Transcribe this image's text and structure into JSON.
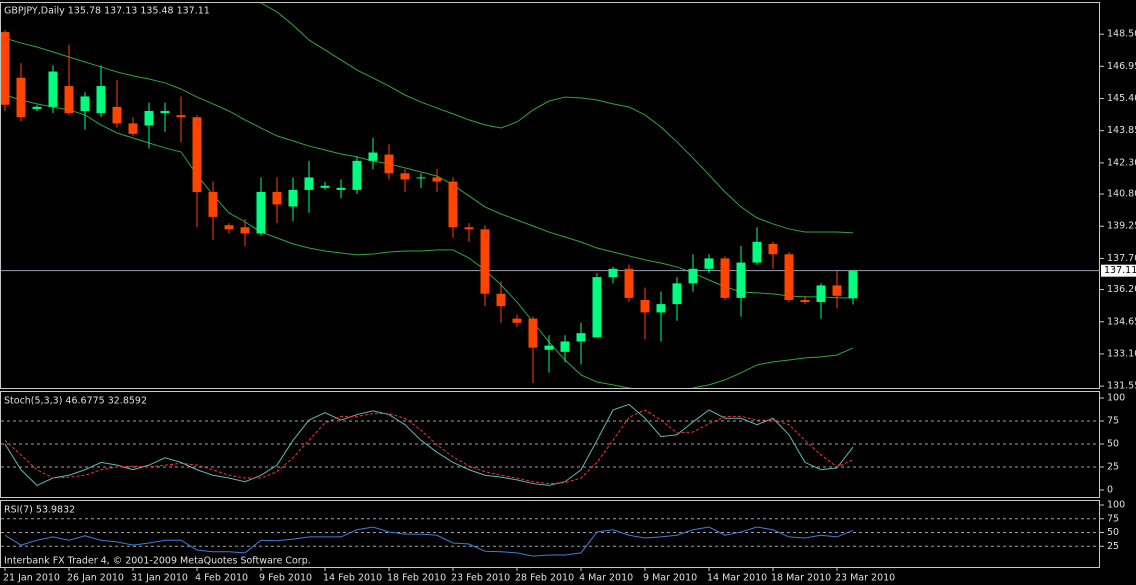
{
  "chart_data": [
    {
      "type": "candlestick",
      "title": "GBPJPY,Daily  135.78 137.13 135.48 137.11",
      "categories": [
        "21 Jan 2010",
        null,
        null,
        null,
        "26 Jan 2010",
        null,
        null,
        null,
        "31 Jan 2010",
        null,
        null,
        null,
        "4 Feb 2010",
        null,
        null,
        null,
        "9 Feb 2010",
        null,
        null,
        null,
        "14 Feb 2010",
        null,
        null,
        null,
        "18 Feb 2010",
        null,
        null,
        null,
        "23 Feb 2010",
        null,
        null,
        null,
        "28 Feb 2010",
        null,
        null,
        null,
        "4 Mar 2010",
        null,
        null,
        null,
        "9 Mar 2010",
        null,
        null,
        null,
        "14 Mar 2010",
        null,
        null,
        null,
        "18 Mar 2010",
        null,
        null,
        null,
        "23 Mar 2010",
        null
      ],
      "open": [
        148.6,
        146.4,
        144.9,
        145.0,
        146.0,
        144.8,
        144.7,
        145.0,
        144.2,
        144.1,
        144.7,
        144.6,
        144.5,
        140.9,
        139.3,
        139.2,
        138.9,
        140.9,
        140.2,
        141.0,
        141.1,
        141.0,
        141.0,
        142.4,
        142.7,
        141.8,
        141.6,
        141.6,
        141.4,
        139.2,
        139.1,
        136.0,
        134.8,
        134.8,
        133.3,
        133.2,
        133.7,
        133.9,
        136.8,
        137.2,
        135.7,
        135.1,
        135.5,
        136.5,
        137.2,
        137.7,
        135.8,
        137.5,
        138.4,
        137.9,
        135.7,
        135.6,
        136.4,
        135.78
      ],
      "high": [
        148.7,
        147.1,
        145.1,
        147.0,
        148.0,
        145.7,
        147.0,
        146.3,
        144.5,
        145.2,
        145.2,
        145.5,
        144.6,
        141.4,
        139.4,
        139.6,
        141.6,
        141.6,
        141.6,
        142.4,
        141.4,
        141.5,
        142.6,
        143.5,
        143.2,
        142.0,
        141.8,
        142.0,
        141.6,
        139.4,
        139.3,
        136.6,
        135.0,
        134.9,
        134.0,
        134.0,
        134.6,
        137.0,
        137.3,
        137.4,
        136.3,
        136.1,
        136.8,
        137.9,
        137.9,
        137.8,
        138.3,
        139.2,
        138.5,
        138.0,
        135.9,
        136.5,
        137.1,
        137.13
      ],
      "low": [
        144.8,
        144.3,
        144.8,
        144.7,
        144.6,
        143.9,
        144.5,
        144.0,
        143.6,
        143.0,
        143.8,
        143.3,
        139.2,
        138.6,
        138.9,
        138.3,
        138.8,
        139.4,
        139.5,
        139.9,
        141.0,
        140.6,
        140.8,
        142.0,
        141.5,
        140.9,
        141.1,
        140.9,
        138.7,
        138.5,
        135.4,
        134.6,
        134.4,
        131.7,
        132.2,
        132.7,
        132.6,
        133.9,
        136.5,
        135.6,
        133.8,
        133.7,
        134.7,
        136.1,
        137.0,
        135.7,
        134.9,
        137.4,
        137.2,
        135.6,
        135.5,
        134.8,
        135.3,
        135.48
      ],
      "close": [
        145.1,
        144.5,
        145.0,
        146.7,
        144.7,
        145.5,
        146.0,
        144.2,
        143.7,
        144.8,
        144.8,
        144.5,
        140.9,
        139.7,
        139.1,
        138.9,
        140.9,
        140.3,
        141.0,
        141.6,
        141.2,
        141.1,
        142.4,
        142.8,
        141.8,
        141.5,
        141.6,
        141.4,
        139.2,
        139.1,
        136.0,
        135.4,
        134.6,
        133.4,
        133.5,
        133.7,
        134.1,
        136.8,
        137.2,
        135.8,
        135.1,
        135.5,
        136.5,
        137.2,
        137.7,
        135.8,
        137.5,
        138.5,
        137.9,
        135.7,
        135.6,
        136.4,
        135.9,
        137.11
      ],
      "up_color": "#00ff7f",
      "down_color": "#ff4500",
      "bands": {
        "color": "#2fa83a",
        "upper": [
          null,
          null,
          null,
          null,
          null,
          null,
          null,
          null,
          null,
          null,
          null,
          null,
          null,
          null,
          null,
          null,
          150.0,
          149.57,
          148.94,
          148.22,
          147.74,
          147.26,
          146.77,
          146.39,
          146.0,
          145.57,
          145.23,
          144.94,
          144.66,
          144.37,
          144.13,
          143.98,
          144.27,
          144.85,
          145.28,
          145.47,
          145.43,
          145.33,
          145.14,
          144.99,
          144.61,
          144.03,
          143.31,
          142.54,
          141.72,
          140.9,
          140.18,
          139.65,
          139.36,
          139.12,
          138.97,
          138.97,
          138.97,
          138.93
        ],
        "middle": [
          148.31,
          148.07,
          147.88,
          147.64,
          147.4,
          147.16,
          146.92,
          146.68,
          146.49,
          146.34,
          146.15,
          145.86,
          145.47,
          145.14,
          144.8,
          144.37,
          143.98,
          143.6,
          143.36,
          143.11,
          142.92,
          142.73,
          142.59,
          142.39,
          142.25,
          142.06,
          141.86,
          141.67,
          141.24,
          140.71,
          140.18,
          139.84,
          139.55,
          139.26,
          138.97,
          138.73,
          138.49,
          138.2,
          138.01,
          137.82,
          137.63,
          137.48,
          137.29,
          137.0,
          136.66,
          136.33,
          136.09,
          136.04,
          135.99,
          135.89,
          135.85,
          135.85,
          135.8,
          135.8
        ],
        "lower": [
          145.57,
          145.33,
          145.14,
          144.99,
          144.85,
          144.61,
          144.13,
          143.74,
          143.5,
          143.26,
          143.02,
          142.83,
          141.72,
          140.76,
          139.89,
          139.46,
          138.97,
          138.69,
          138.4,
          138.2,
          138.06,
          137.96,
          137.87,
          137.91,
          138.01,
          138.06,
          138.06,
          138.11,
          138.11,
          137.72,
          137.14,
          136.42,
          135.6,
          134.64,
          133.68,
          132.81,
          132.09,
          131.75,
          131.61,
          131.46,
          131.37,
          131.27,
          131.27,
          131.46,
          131.61,
          131.85,
          132.19,
          132.57,
          132.72,
          132.81,
          132.91,
          132.96,
          133.05,
          133.39
        ]
      },
      "last": {
        "value": 137.11,
        "label": "137.11"
      },
      "ylim": [
        131.46,
        150.0
      ],
      "yticks": [
        {
          "value": 148.5,
          "label": "148.50"
        },
        {
          "value": 146.95,
          "label": "146.95"
        },
        {
          "value": 145.4,
          "label": "145.40"
        },
        {
          "value": 143.85,
          "label": "143.85"
        },
        {
          "value": 142.3,
          "label": "142.30"
        },
        {
          "value": 140.8,
          "label": "140.80"
        },
        {
          "value": 139.25,
          "label": "139.25"
        },
        {
          "value": 137.7,
          "label": "137.70"
        },
        {
          "value": 136.2,
          "label": "136.20"
        },
        {
          "value": 134.65,
          "label": "134.65"
        },
        {
          "value": 133.1,
          "label": "133.10"
        },
        {
          "value": 131.55,
          "label": "131.55"
        }
      ]
    },
    {
      "type": "line",
      "title": "Stoch(5,3,3) 46.6775 32.8592",
      "series": [
        {
          "color": "#5fb8b8",
          "values": [
            50,
            22,
            5,
            13,
            16,
            22,
            30,
            27,
            22,
            27,
            35,
            30,
            22,
            16,
            13,
            9,
            16,
            27,
            54,
            76,
            84,
            76,
            82,
            86,
            82,
            71,
            54,
            41,
            30,
            22,
            16,
            14,
            11,
            7,
            5,
            9,
            22,
            54,
            87,
            93,
            78,
            58,
            60,
            74,
            87,
            78,
            78,
            71,
            78,
            60,
            30,
            22,
            24,
            46.6775
          ]
        },
        {
          "color": "#ff3030",
          "dashed": true,
          "values": [
            54,
            38,
            22,
            13,
            14,
            16,
            22,
            25,
            26,
            25,
            27,
            29,
            27,
            22,
            16,
            13,
            13,
            20,
            35,
            54,
            73,
            80,
            80,
            83,
            83,
            78,
            65,
            49,
            36,
            26,
            20,
            16,
            13,
            9,
            7,
            8,
            13,
            30,
            54,
            79,
            87,
            76,
            62,
            63,
            72,
            80,
            80,
            76,
            76,
            71,
            54,
            38,
            25,
            32.8592
          ]
        }
      ],
      "levels": [
        75,
        50,
        25
      ],
      "ylim": [
        0,
        100
      ],
      "yticks": [
        100,
        75,
        50,
        25,
        0
      ]
    },
    {
      "type": "line",
      "title": "RSI(7) 53.9832",
      "series": [
        {
          "color": "#3d7fd9",
          "values": [
            45,
            27,
            36,
            42,
            36,
            44,
            36,
            33,
            27,
            31,
            36,
            36,
            18,
            15,
            15,
            13,
            36,
            35,
            38,
            42,
            42,
            42,
            55,
            60,
            51,
            47,
            47,
            45,
            31,
            29,
            16,
            15,
            13,
            7,
            9,
            9,
            13,
            51,
            55,
            45,
            40,
            42,
            45,
            55,
            60,
            45,
            51,
            60,
            55,
            42,
            40,
            45,
            42,
            53.9832
          ]
        }
      ],
      "levels": [
        75,
        50,
        25
      ],
      "ylim": [
        0,
        100
      ],
      "yticks": [
        100,
        75,
        50,
        25
      ]
    }
  ],
  "footer": "Interbank FX Trader 4, © 2001-2009 MetaQuotes Software Corp."
}
